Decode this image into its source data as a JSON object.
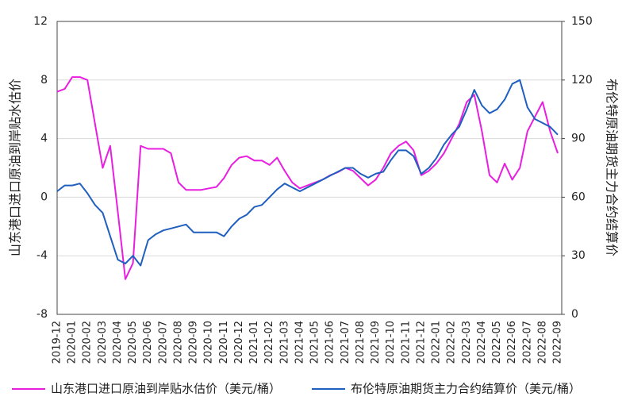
{
  "chart_data": {
    "type": "line",
    "y_label": "山东港口进口原油到岸贴水估价",
    "y2_label": "布伦特原油期货主力合约结算价",
    "x": [
      "2019-12",
      null,
      "2020-01",
      null,
      "2020-02",
      null,
      "2020-03",
      null,
      "2020-04",
      null,
      "2020-05",
      null,
      "2020-06",
      null,
      "2020-07",
      null,
      "2020-08",
      null,
      "2020-09",
      null,
      "2020-10",
      null,
      "2020-11",
      null,
      "2020-12",
      null,
      "2021-01",
      null,
      "2021-02",
      null,
      "2021-03",
      null,
      "2021-04",
      null,
      "2021-05",
      null,
      "2021-06",
      null,
      "2021-07",
      null,
      "2021-08",
      null,
      "2021-09",
      null,
      "2021-10",
      null,
      "2021-11",
      null,
      "2021-12",
      null,
      "2022-01",
      null,
      "2022-02",
      null,
      "2022-03",
      null,
      "2022-04",
      null,
      "2022-05",
      null,
      "2022-06",
      null,
      "2022-07",
      null,
      "2022-08",
      null,
      "2022-09"
    ],
    "series": [
      {
        "name": "山东港口进口原油到岸贴水估价（美元/桶）",
        "color": "#e81ee0",
        "axis": "y",
        "values": [
          7.2,
          7.4,
          8.2,
          8.2,
          8.0,
          5.0,
          2.0,
          3.5,
          -1,
          -5.6,
          -4.5,
          3.5,
          3.3,
          3.3,
          3.3,
          3.0,
          1.0,
          0.5,
          0.5,
          0.5,
          0.6,
          0.7,
          1.3,
          2.2,
          2.7,
          2.8,
          2.5,
          2.5,
          2.2,
          2.7,
          1.8,
          1.0,
          0.6,
          0.8,
          1.0,
          1.2,
          1.5,
          1.7,
          2.0,
          1.8,
          1.3,
          0.8,
          1.2,
          2.0,
          3.0,
          3.5,
          3.8,
          3.2,
          1.5,
          1.8,
          2.3,
          3.0,
          4.0,
          5.0,
          6.5,
          7.0,
          4.5,
          1.5,
          1.0,
          2.3,
          1.2,
          2.0,
          4.5,
          5.5,
          6.5,
          4.5,
          3.0
        ]
      },
      {
        "name": "布伦特原油期货主力合约结算价（美元/桶）",
        "color": "#1f5fbf",
        "axis": "y2",
        "values": [
          63,
          66,
          66,
          67,
          62,
          56,
          52,
          40,
          28,
          26,
          30,
          25,
          38,
          41,
          43,
          44,
          45,
          46,
          42,
          42,
          42,
          42,
          40,
          45,
          49,
          51,
          55,
          56,
          60,
          64,
          67,
          65,
          63,
          65,
          67,
          69,
          71,
          73,
          75,
          75,
          72,
          70,
          72,
          73,
          79,
          84,
          84,
          81,
          72,
          75,
          80,
          87,
          92,
          96,
          105,
          115,
          107,
          103,
          105,
          110,
          118,
          120,
          106,
          100,
          98,
          96,
          92
        ]
      }
    ],
    "ylim": [
      -8,
      12
    ],
    "yticks": [
      -8,
      -4,
      0,
      4,
      8,
      12
    ],
    "y2lim": [
      0,
      150
    ],
    "y2ticks": [
      0,
      30,
      60,
      90,
      120,
      150
    ],
    "grid": true
  }
}
